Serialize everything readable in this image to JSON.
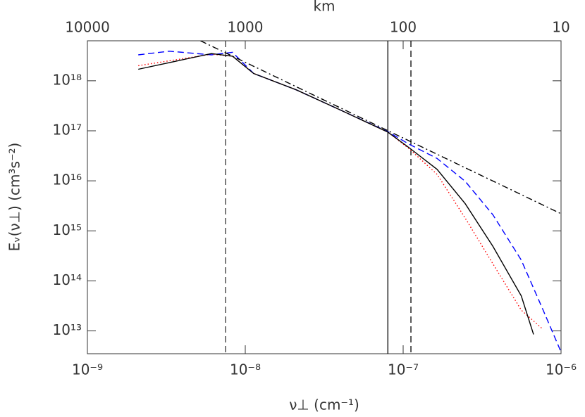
{
  "chart_data": {
    "type": "line",
    "x_label": "ν⊥ (cm⁻¹)",
    "y_label": "Eᵥ(ν⊥) (cm³s⁻²)",
    "x2_label": "km",
    "log_x": true,
    "log_y": true,
    "xlim": [
      1e-09,
      1e-06
    ],
    "xticks": [
      {
        "value": 1e-09,
        "label": "10⁻⁹"
      },
      {
        "value": 1e-08,
        "label": "10⁻⁸"
      },
      {
        "value": 1e-07,
        "label": "10⁻⁷"
      },
      {
        "value": 1e-06,
        "label": "10⁻⁶"
      }
    ],
    "x2lim": [
      10000,
      10
    ],
    "x2ticks": [
      10000,
      1000,
      100,
      10
    ],
    "ylim": [
      3500000000000.0,
      6.3e+18
    ],
    "yticks": [
      {
        "value": 10000000000000.0,
        "label": "10¹³"
      },
      {
        "value": 100000000000000.0,
        "label": "10¹⁴"
      },
      {
        "value": 1000000000000000.0,
        "label": "10¹⁵"
      },
      {
        "value": 1e+16,
        "label": "10¹⁶"
      },
      {
        "value": 1e+17,
        "label": "10¹⁷"
      },
      {
        "value": 1e+18,
        "label": "10¹⁸"
      }
    ],
    "series": [
      {
        "color": "#ff0000",
        "dash": "dotted",
        "x": [
          2.1e-09,
          6.1e-09,
          8.3e-09,
          1.13e-08,
          2.1e-08,
          3.9e-08,
          8e-08,
          1.09e-07,
          1.64e-07,
          2.47e-07,
          3.7e-07,
          5.6e-07,
          7.7e-07
        ],
        "values": [
          2e+18,
          3.4e+18,
          3.1e+18,
          1.4e+18,
          6.6e+17,
          2.7e+17,
          9.4e+16,
          4.4e+16,
          1.35e+16,
          1800000000000000.0,
          220000000000000.0,
          26000000000000.0,
          10700000000000.0
        ]
      },
      {
        "color": "#0000ff",
        "dash": "dashed",
        "x": [
          2.1e-09,
          3.3e-09,
          6.1e-09,
          8.3e-09,
          1.13e-08,
          2.1e-08,
          3.9e-08,
          8e-08,
          1.09e-07,
          1.64e-07,
          2.47e-07,
          3.7e-07,
          5.6e-07,
          7.7e-07,
          1e-06
        ],
        "values": [
          3.3e+18,
          3.9e+18,
          3.3e+18,
          3.7e+18,
          1.4e+18,
          6.6e+17,
          2.7e+17,
          9.6e+16,
          5.4e+16,
          2.8e+16,
          9800000000000000.0,
          2100000000000000.0,
          260000000000000.0,
          26000000000000.0,
          3800000000000.0
        ]
      },
      {
        "color": "#000000",
        "dash": "solid",
        "x": [
          2.1e-09,
          6.1e-09,
          8.3e-09,
          1.13e-08,
          2.1e-08,
          3.9e-08,
          8e-08,
          1.09e-07,
          1.64e-07,
          2.47e-07,
          3.7e-07,
          5.6e-07,
          6.7e-07
        ],
        "values": [
          1.7e+18,
          3.5e+18,
          3.1e+18,
          1.4e+18,
          6.6e+17,
          2.7e+17,
          9.4e+16,
          4.6e+16,
          1.7e+16,
          3500000000000000.0,
          490000000000000.0,
          50000000000000.0,
          8500000000000.0
        ]
      },
      {
        "color": "#000000",
        "dash": "dashdot",
        "x": [
          5.2e-09,
          1e-06
        ],
        "values": [
          6.3e+18,
          2200000000000000.0
        ]
      }
    ],
    "vlines": [
      {
        "x": 7.5e-09,
        "color": "#333333",
        "dash": "dashed"
      },
      {
        "x": 8e-08,
        "color": "#000000",
        "dash": "solid"
      },
      {
        "x": 1.12e-07,
        "color": "#000000",
        "dash": "dashed"
      }
    ]
  }
}
